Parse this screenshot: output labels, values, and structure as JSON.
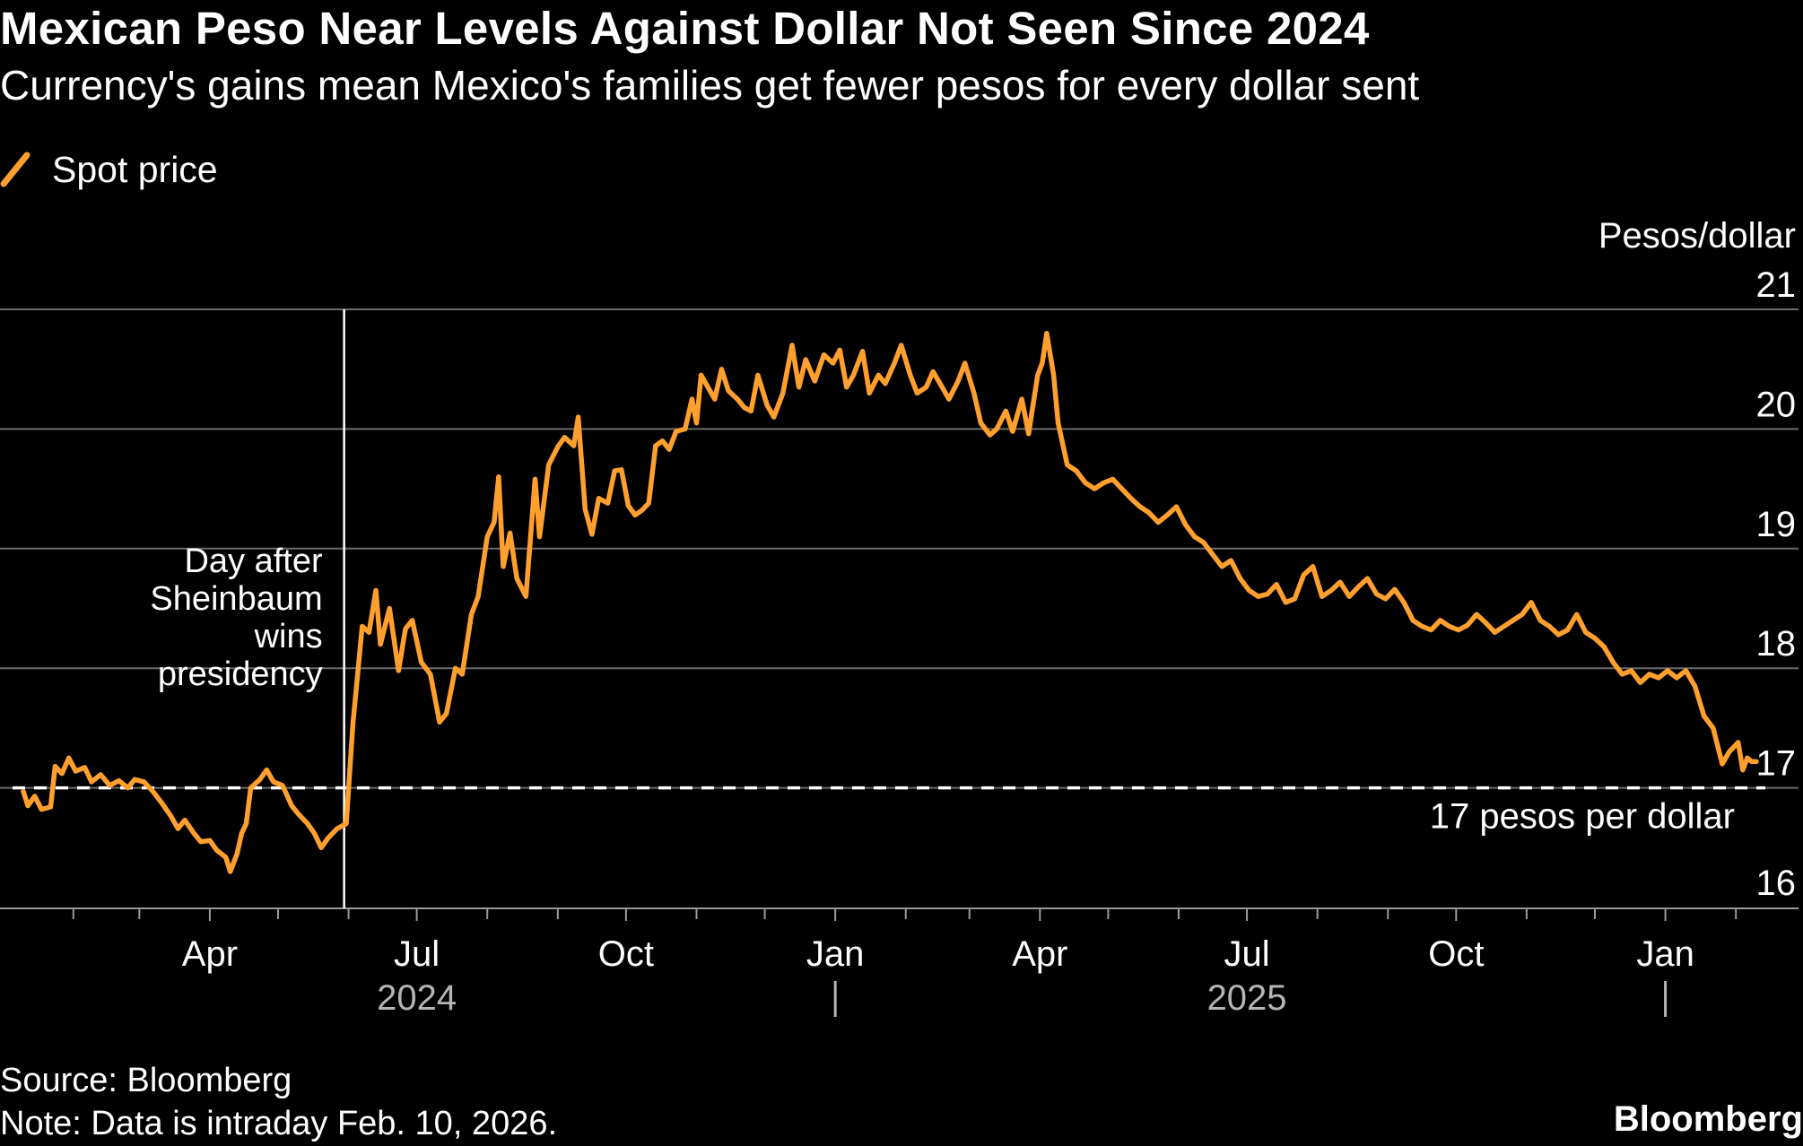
{
  "header": {
    "title": "Mexican Peso Near Levels Against Dollar Not Seen Since 2024",
    "subtitle": "Currency's gains mean Mexico's families get fewer pesos for every dollar sent"
  },
  "legend": {
    "label": "Spot price",
    "color": "#ff9f2e"
  },
  "footer": {
    "source": "Source: Bloomberg",
    "note": "Note: Data is intraday Feb. 10, 2026.",
    "brand": "Bloomberg"
  },
  "chart_data": {
    "type": "line",
    "title": "Mexican Peso Near Levels Against Dollar Not Seen Since 2024",
    "subtitle": "Currency's gains mean Mexico's families get fewer pesos for every dollar sent",
    "ylabel": "Pesos/dollar",
    "ylim": [
      16,
      21
    ],
    "xlim": [
      "2024-01-10",
      "2026-02-15"
    ],
    "yticks": [
      16,
      17,
      18,
      19,
      20,
      21
    ],
    "xticks": [
      {
        "date": "2024-04-01",
        "label": "Apr"
      },
      {
        "date": "2024-07-01",
        "label": "Jul"
      },
      {
        "date": "2024-10-01",
        "label": "Oct"
      },
      {
        "date": "2025-01-01",
        "label": "Jan"
      },
      {
        "date": "2025-04-01",
        "label": "Apr"
      },
      {
        "date": "2025-07-01",
        "label": "Jul"
      },
      {
        "date": "2025-10-01",
        "label": "Oct"
      },
      {
        "date": "2026-01-01",
        "label": "Jan"
      }
    ],
    "minor_ticks": [
      "2024-02-01",
      "2024-03-01",
      "2024-05-01",
      "2024-06-01",
      "2024-08-01",
      "2024-09-01",
      "2024-11-01",
      "2024-12-01",
      "2025-02-01",
      "2025-03-01",
      "2025-05-01",
      "2025-06-01",
      "2025-08-01",
      "2025-09-01",
      "2025-11-01",
      "2025-12-01",
      "2026-02-01"
    ],
    "year_labels": [
      {
        "date": "2024-07-01",
        "label": "2024"
      },
      {
        "date": "2025-07-01",
        "label": "2025"
      }
    ],
    "year_dividers": [
      "2025-01-01",
      "2026-01-01"
    ],
    "grid": true,
    "legend_position": "top-left",
    "series": [
      {
        "name": "Spot price",
        "color": "#ff9f2e",
        "points": [
          [
            "2024-01-10",
            16.97
          ],
          [
            "2024-01-12",
            16.85
          ],
          [
            "2024-01-15",
            16.93
          ],
          [
            "2024-01-18",
            16.82
          ],
          [
            "2024-01-22",
            16.84
          ],
          [
            "2024-01-24",
            17.18
          ],
          [
            "2024-01-27",
            17.12
          ],
          [
            "2024-01-30",
            17.25
          ],
          [
            "2024-02-02",
            17.14
          ],
          [
            "2024-02-06",
            17.17
          ],
          [
            "2024-02-09",
            17.05
          ],
          [
            "2024-02-13",
            17.11
          ],
          [
            "2024-02-17",
            17.02
          ],
          [
            "2024-02-21",
            17.06
          ],
          [
            "2024-02-25",
            17.0
          ],
          [
            "2024-02-28",
            17.07
          ],
          [
            "2024-03-03",
            17.05
          ],
          [
            "2024-03-07",
            16.97
          ],
          [
            "2024-03-11",
            16.87
          ],
          [
            "2024-03-15",
            16.76
          ],
          [
            "2024-03-18",
            16.66
          ],
          [
            "2024-03-21",
            16.73
          ],
          [
            "2024-03-25",
            16.62
          ],
          [
            "2024-03-28",
            16.55
          ],
          [
            "2024-04-01",
            16.56
          ],
          [
            "2024-04-04",
            16.48
          ],
          [
            "2024-04-08",
            16.42
          ],
          [
            "2024-04-10",
            16.3
          ],
          [
            "2024-04-13",
            16.45
          ],
          [
            "2024-04-15",
            16.62
          ],
          [
            "2024-04-17",
            16.7
          ],
          [
            "2024-04-19",
            17.0
          ],
          [
            "2024-04-23",
            17.07
          ],
          [
            "2024-04-26",
            17.15
          ],
          [
            "2024-04-29",
            17.05
          ],
          [
            "2024-05-03",
            17.02
          ],
          [
            "2024-05-07",
            16.85
          ],
          [
            "2024-05-10",
            16.78
          ],
          [
            "2024-05-14",
            16.7
          ],
          [
            "2024-05-17",
            16.62
          ],
          [
            "2024-05-20",
            16.5
          ],
          [
            "2024-05-23",
            16.58
          ],
          [
            "2024-05-27",
            16.66
          ],
          [
            "2024-05-31",
            16.7
          ],
          [
            "2024-06-03",
            17.55
          ],
          [
            "2024-06-05",
            17.95
          ],
          [
            "2024-06-07",
            18.35
          ],
          [
            "2024-06-10",
            18.3
          ],
          [
            "2024-06-13",
            18.65
          ],
          [
            "2024-06-15",
            18.2
          ],
          [
            "2024-06-19",
            18.5
          ],
          [
            "2024-06-23",
            17.98
          ],
          [
            "2024-06-26",
            18.33
          ],
          [
            "2024-06-29",
            18.4
          ],
          [
            "2024-07-03",
            18.05
          ],
          [
            "2024-07-07",
            17.95
          ],
          [
            "2024-07-11",
            17.55
          ],
          [
            "2024-07-14",
            17.62
          ],
          [
            "2024-07-18",
            18.0
          ],
          [
            "2024-07-21",
            17.95
          ],
          [
            "2024-07-25",
            18.45
          ],
          [
            "2024-07-28",
            18.6
          ],
          [
            "2024-08-01",
            19.1
          ],
          [
            "2024-08-04",
            19.22
          ],
          [
            "2024-08-06",
            19.6
          ],
          [
            "2024-08-08",
            18.85
          ],
          [
            "2024-08-11",
            19.13
          ],
          [
            "2024-08-14",
            18.75
          ],
          [
            "2024-08-18",
            18.6
          ],
          [
            "2024-08-22",
            19.58
          ],
          [
            "2024-08-24",
            19.1
          ],
          [
            "2024-08-28",
            19.7
          ],
          [
            "2024-09-01",
            19.85
          ],
          [
            "2024-09-04",
            19.93
          ],
          [
            "2024-09-08",
            19.86
          ],
          [
            "2024-09-10",
            20.1
          ],
          [
            "2024-09-13",
            19.33
          ],
          [
            "2024-09-16",
            19.12
          ],
          [
            "2024-09-19",
            19.42
          ],
          [
            "2024-09-23",
            19.38
          ],
          [
            "2024-09-26",
            19.65
          ],
          [
            "2024-09-29",
            19.66
          ],
          [
            "2024-10-02",
            19.36
          ],
          [
            "2024-10-05",
            19.28
          ],
          [
            "2024-10-08",
            19.32
          ],
          [
            "2024-10-11",
            19.38
          ],
          [
            "2024-10-14",
            19.86
          ],
          [
            "2024-10-17",
            19.9
          ],
          [
            "2024-10-20",
            19.83
          ],
          [
            "2024-10-23",
            19.98
          ],
          [
            "2024-10-27",
            20.0
          ],
          [
            "2024-10-30",
            20.25
          ],
          [
            "2024-11-01",
            20.05
          ],
          [
            "2024-11-03",
            20.45
          ],
          [
            "2024-11-06",
            20.35
          ],
          [
            "2024-11-09",
            20.25
          ],
          [
            "2024-11-12",
            20.5
          ],
          [
            "2024-11-15",
            20.32
          ],
          [
            "2024-11-19",
            20.25
          ],
          [
            "2024-11-22",
            20.18
          ],
          [
            "2024-11-25",
            20.15
          ],
          [
            "2024-11-28",
            20.45
          ],
          [
            "2024-12-02",
            20.2
          ],
          [
            "2024-12-05",
            20.1
          ],
          [
            "2024-12-09",
            20.3
          ],
          [
            "2024-12-13",
            20.7
          ],
          [
            "2024-12-16",
            20.35
          ],
          [
            "2024-12-19",
            20.58
          ],
          [
            "2024-12-23",
            20.4
          ],
          [
            "2024-12-27",
            20.62
          ],
          [
            "2024-12-31",
            20.55
          ],
          [
            "2025-01-03",
            20.66
          ],
          [
            "2025-01-06",
            20.35
          ],
          [
            "2025-01-09",
            20.45
          ],
          [
            "2025-01-13",
            20.65
          ],
          [
            "2025-01-16",
            20.3
          ],
          [
            "2025-01-20",
            20.45
          ],
          [
            "2025-01-23",
            20.38
          ],
          [
            "2025-01-27",
            20.55
          ],
          [
            "2025-01-30",
            20.7
          ],
          [
            "2025-02-03",
            20.45
          ],
          [
            "2025-02-06",
            20.3
          ],
          [
            "2025-02-10",
            20.35
          ],
          [
            "2025-02-13",
            20.48
          ],
          [
            "2025-02-17",
            20.35
          ],
          [
            "2025-02-20",
            20.25
          ],
          [
            "2025-02-24",
            20.4
          ],
          [
            "2025-02-27",
            20.55
          ],
          [
            "2025-03-03",
            20.3
          ],
          [
            "2025-03-06",
            20.05
          ],
          [
            "2025-03-10",
            19.95
          ],
          [
            "2025-03-13",
            20.0
          ],
          [
            "2025-03-17",
            20.15
          ],
          [
            "2025-03-20",
            19.98
          ],
          [
            "2025-03-24",
            20.25
          ],
          [
            "2025-03-27",
            19.96
          ],
          [
            "2025-03-31",
            20.45
          ],
          [
            "2025-04-02",
            20.55
          ],
          [
            "2025-04-04",
            20.8
          ],
          [
            "2025-04-07",
            20.45
          ],
          [
            "2025-04-09",
            20.05
          ],
          [
            "2025-04-13",
            19.7
          ],
          [
            "2025-04-17",
            19.65
          ],
          [
            "2025-04-21",
            19.55
          ],
          [
            "2025-04-25",
            19.5
          ],
          [
            "2025-04-29",
            19.55
          ],
          [
            "2025-05-03",
            19.58
          ],
          [
            "2025-05-07",
            19.5
          ],
          [
            "2025-05-11",
            19.42
          ],
          [
            "2025-05-15",
            19.35
          ],
          [
            "2025-05-19",
            19.3
          ],
          [
            "2025-05-23",
            19.22
          ],
          [
            "2025-05-27",
            19.28
          ],
          [
            "2025-05-31",
            19.35
          ],
          [
            "2025-06-04",
            19.2
          ],
          [
            "2025-06-08",
            19.1
          ],
          [
            "2025-06-12",
            19.05
          ],
          [
            "2025-06-16",
            18.95
          ],
          [
            "2025-06-20",
            18.85
          ],
          [
            "2025-06-24",
            18.9
          ],
          [
            "2025-06-28",
            18.75
          ],
          [
            "2025-07-02",
            18.65
          ],
          [
            "2025-07-06",
            18.6
          ],
          [
            "2025-07-10",
            18.62
          ],
          [
            "2025-07-14",
            18.7
          ],
          [
            "2025-07-18",
            18.55
          ],
          [
            "2025-07-22",
            18.58
          ],
          [
            "2025-07-26",
            18.78
          ],
          [
            "2025-07-30",
            18.85
          ],
          [
            "2025-08-03",
            18.6
          ],
          [
            "2025-08-07",
            18.65
          ],
          [
            "2025-08-11",
            18.72
          ],
          [
            "2025-08-15",
            18.6
          ],
          [
            "2025-08-19",
            18.68
          ],
          [
            "2025-08-23",
            18.75
          ],
          [
            "2025-08-27",
            18.62
          ],
          [
            "2025-08-31",
            18.58
          ],
          [
            "2025-09-04",
            18.66
          ],
          [
            "2025-09-08",
            18.55
          ],
          [
            "2025-09-12",
            18.4
          ],
          [
            "2025-09-16",
            18.35
          ],
          [
            "2025-09-20",
            18.32
          ],
          [
            "2025-09-24",
            18.4
          ],
          [
            "2025-09-28",
            18.35
          ],
          [
            "2025-10-02",
            18.32
          ],
          [
            "2025-10-06",
            18.36
          ],
          [
            "2025-10-10",
            18.45
          ],
          [
            "2025-10-14",
            18.38
          ],
          [
            "2025-10-18",
            18.3
          ],
          [
            "2025-10-22",
            18.35
          ],
          [
            "2025-10-26",
            18.4
          ],
          [
            "2025-10-30",
            18.45
          ],
          [
            "2025-11-03",
            18.55
          ],
          [
            "2025-11-07",
            18.4
          ],
          [
            "2025-11-11",
            18.35
          ],
          [
            "2025-11-15",
            18.28
          ],
          [
            "2025-11-19",
            18.32
          ],
          [
            "2025-11-23",
            18.45
          ],
          [
            "2025-11-27",
            18.3
          ],
          [
            "2025-12-01",
            18.25
          ],
          [
            "2025-12-05",
            18.18
          ],
          [
            "2025-12-09",
            18.05
          ],
          [
            "2025-12-13",
            17.95
          ],
          [
            "2025-12-17",
            17.98
          ],
          [
            "2025-12-21",
            17.88
          ],
          [
            "2025-12-25",
            17.95
          ],
          [
            "2025-12-29",
            17.92
          ],
          [
            "2026-01-02",
            17.98
          ],
          [
            "2026-01-06",
            17.92
          ],
          [
            "2026-01-10",
            17.98
          ],
          [
            "2026-01-14",
            17.85
          ],
          [
            "2026-01-18",
            17.6
          ],
          [
            "2026-01-22",
            17.5
          ],
          [
            "2026-01-26",
            17.2
          ],
          [
            "2026-01-29",
            17.3
          ],
          [
            "2026-02-02",
            17.38
          ],
          [
            "2026-02-04",
            17.15
          ],
          [
            "2026-02-06",
            17.25
          ],
          [
            "2026-02-08",
            17.22
          ],
          [
            "2026-02-10",
            17.22
          ]
        ]
      }
    ],
    "reference_line": {
      "y": 17,
      "label": "17 pesos per dollar"
    },
    "annotations": [
      {
        "date": "2024-06-03",
        "lines": [
          "Day after",
          "Sheinbaum",
          "wins",
          "presidency"
        ]
      }
    ]
  }
}
